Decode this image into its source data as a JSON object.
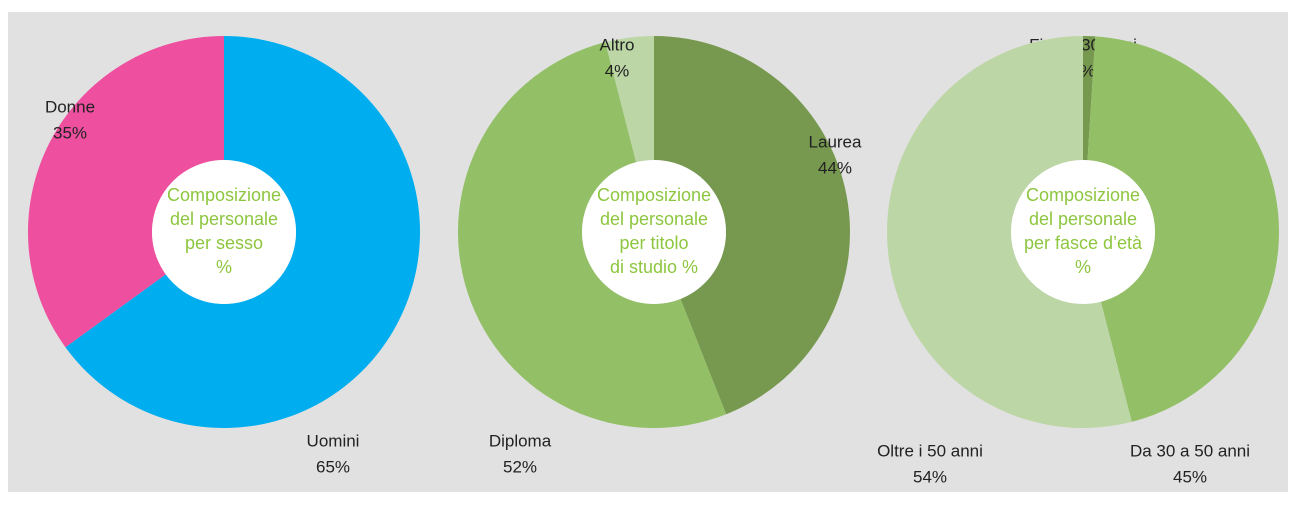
{
  "chart_data": [
    {
      "type": "pie",
      "title": [
        "Composizione",
        "del personale",
        "per sesso",
        "%"
      ],
      "categories": [
        "Uomini",
        "Donne"
      ],
      "values": [
        65,
        35
      ],
      "value_labels": [
        "65%",
        "35%"
      ],
      "colors": [
        "#00aeef",
        "#ee4f9f"
      ]
    },
    {
      "type": "pie",
      "title": [
        "Composizione",
        "del personale",
        "per titolo",
        "di studio %"
      ],
      "categories": [
        "Laurea",
        "Diploma",
        "Altro"
      ],
      "values": [
        44,
        52,
        4
      ],
      "value_labels": [
        "44%",
        "52%",
        "4%"
      ],
      "colors": [
        "#77994f",
        "#93bf66",
        "#bcd6a6"
      ]
    },
    {
      "type": "pie",
      "title": [
        "Composizione",
        "del personale",
        "per fasce d’età",
        "%"
      ],
      "categories": [
        "Fino a 30 anni",
        "Da 30 a 50 anni",
        "Oltre i 50 anni"
      ],
      "values": [
        1,
        45,
        54
      ],
      "value_labels": [
        "1%",
        "45%",
        "54%"
      ],
      "colors": [
        "#77994f",
        "#93bf66",
        "#bcd6a6"
      ]
    }
  ]
}
